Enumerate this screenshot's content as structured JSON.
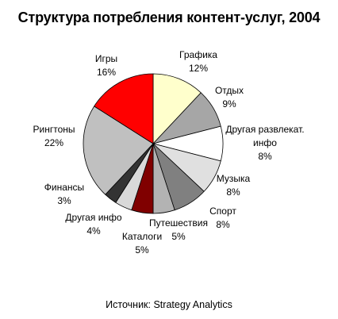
{
  "chart_data": {
    "type": "pie",
    "title": "Структура потребления контент-услуг, 2004",
    "start_angle_deg": 0,
    "direction": "clockwise",
    "slices": [
      {
        "name": "Графика",
        "value": 12,
        "value_label": "12%",
        "color": "#ffffcc",
        "label_lines": [
          "Графика",
          "12%"
        ]
      },
      {
        "name": "Отдых",
        "value": 9,
        "value_label": "9%",
        "color": "#a6a6a6",
        "label_lines": [
          "Отдых",
          "9%"
        ]
      },
      {
        "name": "Другая развлекат. инфо",
        "value": 8,
        "value_label": "8%",
        "color": "#ffffff",
        "label_lines": [
          "Другая развлекат.",
          "инфо",
          "8%"
        ]
      },
      {
        "name": "Музыка",
        "value": 8,
        "value_label": "8%",
        "color": "#e0e0e0",
        "label_lines": [
          "Музыка",
          "8%"
        ]
      },
      {
        "name": "Спорт",
        "value": 8,
        "value_label": "8%",
        "color": "#808080",
        "label_lines": [
          "Спорт",
          "8%"
        ]
      },
      {
        "name": "Путешествия",
        "value": 5,
        "value_label": "5%",
        "color": "#b3b3b3",
        "label_lines": [
          "Путешествия",
          "5%"
        ]
      },
      {
        "name": "Каталоги",
        "value": 5,
        "value_label": "5%",
        "color": "#800000",
        "label_lines": [
          "Каталоги",
          "5%"
        ]
      },
      {
        "name": "Другая инфо",
        "value": 4,
        "value_label": "4%",
        "color": "#d9d9d9",
        "label_lines": [
          "Другая инфо",
          "4%"
        ]
      },
      {
        "name": "Финансы",
        "value": 3,
        "value_label": "3%",
        "color": "#333333",
        "label_lines": [
          "Финансы",
          "3%"
        ]
      },
      {
        "name": "Рингтоны",
        "value": 22,
        "value_label": "22%",
        "color": "#c0c0c0",
        "label_lines": [
          "Рингтоны",
          "22%"
        ]
      },
      {
        "name": "Игры",
        "value": 16,
        "value_label": "16%",
        "color": "#ff0000",
        "label_lines": [
          "Игры",
          "16%"
        ]
      }
    ]
  },
  "source_note": "Источник: Strategy Analytics"
}
